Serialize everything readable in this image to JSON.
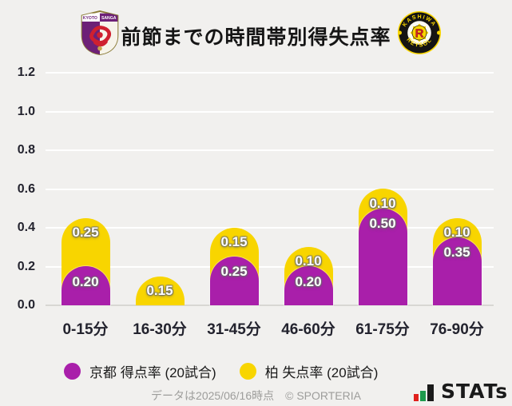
{
  "header": {
    "title": "前節までの時間帯別得失点率",
    "home_team": "京都",
    "away_team": "柏"
  },
  "chart_data": {
    "type": "bar",
    "stacked": true,
    "categories": [
      "0-15分",
      "16-30分",
      "31-45分",
      "46-60分",
      "61-75分",
      "76-90分"
    ],
    "series": [
      {
        "name": "京都 得点率 (20試合)",
        "color": "#a91faa",
        "values": [
          0.2,
          0.0,
          0.25,
          0.2,
          0.5,
          0.35
        ]
      },
      {
        "name": "柏 失点率 (20試合)",
        "color": "#f8d500",
        "values": [
          0.25,
          0.15,
          0.15,
          0.1,
          0.1,
          0.1
        ]
      }
    ],
    "title": "前節までの時間帯別得失点率",
    "xlabel": "",
    "ylabel": "",
    "ylim": [
      0,
      1.2
    ],
    "yticks": [
      0.0,
      0.2,
      0.4,
      0.6,
      0.8,
      1.0,
      1.2
    ],
    "grid": "horizontal",
    "legend_position": "bottom",
    "value_labels": "shown on non-zero segments, 2 decimals"
  },
  "footer": {
    "data_note": "データは2025/06/16時点",
    "copyright": "© SPORTERIA",
    "brand": "STATs"
  },
  "colors": {
    "background": "#f1f0ee",
    "gridline": "#ffffff",
    "axis_line": "#d8d7d3",
    "text_dark": "#23232e",
    "kyoto_purple": "#a91faa",
    "kashiwa_yellow": "#f8d500",
    "stats_red": "#e0201c",
    "stats_green": "#1d9a4c"
  }
}
